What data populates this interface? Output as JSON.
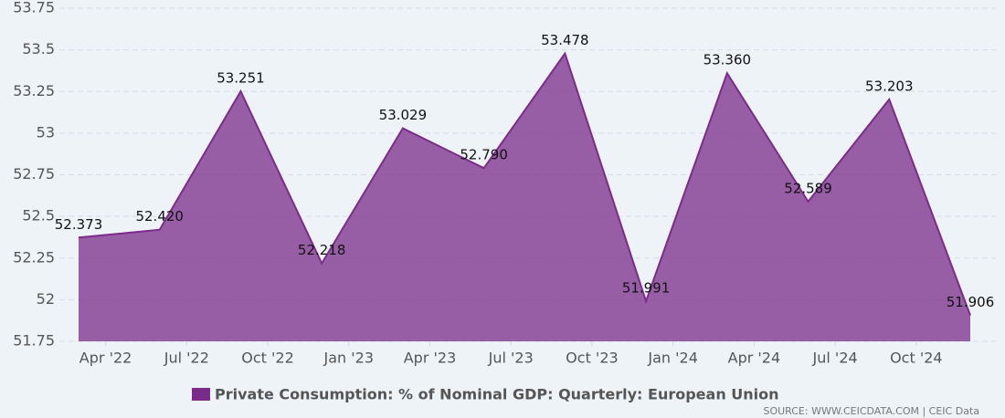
{
  "chart_data": {
    "type": "area",
    "x": [
      "2022-03",
      "2022-06",
      "2022-09",
      "2022-12",
      "2023-03",
      "2023-06",
      "2023-09",
      "2023-12",
      "2024-03",
      "2024-06",
      "2024-09",
      "2024-12"
    ],
    "series": [
      {
        "name": "Private Consumption: % of Nominal GDP: Quarterly: European Union",
        "color": "#7b2c8a",
        "values": [
          52.373,
          52.42,
          53.251,
          52.218,
          53.029,
          52.79,
          53.478,
          51.991,
          53.36,
          52.589,
          53.203,
          51.906
        ],
        "value_labels": [
          "52.373",
          "52.420",
          "53.251",
          "52.218",
          "53.029",
          "52.790",
          "53.478",
          "51.991",
          "53.360",
          "52.589",
          "53.203",
          "51.906"
        ]
      }
    ],
    "ylim": [
      51.75,
      53.75
    ],
    "yticks": [
      51.75,
      52,
      52.25,
      52.5,
      52.75,
      53,
      53.25,
      53.5,
      53.75
    ],
    "xticks": [
      {
        "value": "2022-04",
        "label": "Apr '22"
      },
      {
        "value": "2022-07",
        "label": "Jul '22"
      },
      {
        "value": "2022-10",
        "label": "Oct '22"
      },
      {
        "value": "2023-01",
        "label": "Jan '23"
      },
      {
        "value": "2023-04",
        "label": "Apr '23"
      },
      {
        "value": "2023-07",
        "label": "Jul '23"
      },
      {
        "value": "2023-10",
        "label": "Oct '23"
      },
      {
        "value": "2024-01",
        "label": "Jan '24"
      },
      {
        "value": "2024-04",
        "label": "Apr '24"
      },
      {
        "value": "2024-07",
        "label": "Jul '24"
      },
      {
        "value": "2024-10",
        "label": "Oct '24"
      }
    ],
    "grid": true,
    "source": "SOURCE: WWW.CEICDATA.COM | CEIC Data"
  }
}
